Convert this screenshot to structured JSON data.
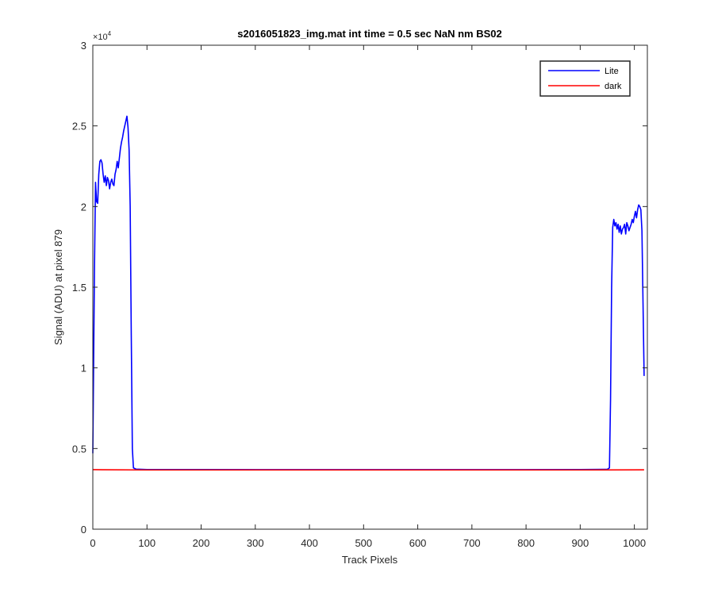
{
  "chart_data": {
    "type": "line",
    "title": "s2016051823_img.mat int time = 0.5 sec  NaN nm BS02",
    "xlabel": "Track Pixels",
    "ylabel": "Signal (ADU) at pixel 879",
    "xlim": [
      0,
      1024
    ],
    "ylim": [
      0,
      30000
    ],
    "x_ticks": [
      0,
      100,
      200,
      300,
      400,
      500,
      600,
      700,
      800,
      900,
      1000
    ],
    "y_ticks": [
      0,
      5000,
      10000,
      15000,
      20000,
      25000,
      30000
    ],
    "y_tick_labels": [
      "0",
      "0.5",
      "1",
      "1.5",
      "2",
      "2.5",
      "3"
    ],
    "y_exponent_label": "×10",
    "y_exponent_power": "4",
    "grid": false,
    "legend_position": "top-right",
    "series": [
      {
        "name": "Lite",
        "color": "#0000ff",
        "points": [
          [
            0,
            4700
          ],
          [
            3,
            16000
          ],
          [
            5,
            21500
          ],
          [
            7,
            20300
          ],
          [
            9,
            20200
          ],
          [
            11,
            22000
          ],
          [
            13,
            22800
          ],
          [
            15,
            22900
          ],
          [
            17,
            22700
          ],
          [
            19,
            22000
          ],
          [
            21,
            21500
          ],
          [
            23,
            21900
          ],
          [
            25,
            21300
          ],
          [
            27,
            21800
          ],
          [
            29,
            21600
          ],
          [
            31,
            21100
          ],
          [
            33,
            21500
          ],
          [
            35,
            21700
          ],
          [
            37,
            21400
          ],
          [
            39,
            21300
          ],
          [
            41,
            22000
          ],
          [
            43,
            22300
          ],
          [
            45,
            22800
          ],
          [
            47,
            22400
          ],
          [
            49,
            23000
          ],
          [
            51,
            23600
          ],
          [
            53,
            24000
          ],
          [
            55,
            24300
          ],
          [
            57,
            24700
          ],
          [
            59,
            25000
          ],
          [
            61,
            25300
          ],
          [
            63,
            25600
          ],
          [
            65,
            24900
          ],
          [
            67,
            23500
          ],
          [
            69,
            20000
          ],
          [
            71,
            12000
          ],
          [
            73,
            5000
          ],
          [
            75,
            3800
          ],
          [
            80,
            3720
          ],
          [
            100,
            3700
          ],
          [
            200,
            3700
          ],
          [
            300,
            3690
          ],
          [
            400,
            3690
          ],
          [
            500,
            3690
          ],
          [
            600,
            3690
          ],
          [
            700,
            3690
          ],
          [
            800,
            3690
          ],
          [
            900,
            3700
          ],
          [
            950,
            3710
          ],
          [
            954,
            3800
          ],
          [
            956,
            8000
          ],
          [
            958,
            15000
          ],
          [
            960,
            18700
          ],
          [
            962,
            19200
          ],
          [
            964,
            18800
          ],
          [
            966,
            19000
          ],
          [
            968,
            18600
          ],
          [
            970,
            18900
          ],
          [
            972,
            18400
          ],
          [
            974,
            18800
          ],
          [
            976,
            18300
          ],
          [
            978,
            18600
          ],
          [
            980,
            18700
          ],
          [
            982,
            18900
          ],
          [
            984,
            18300
          ],
          [
            986,
            19000
          ],
          [
            988,
            18800
          ],
          [
            990,
            18500
          ],
          [
            992,
            18700
          ],
          [
            994,
            18900
          ],
          [
            996,
            19200
          ],
          [
            998,
            19000
          ],
          [
            1000,
            19400
          ],
          [
            1002,
            19700
          ],
          [
            1004,
            19300
          ],
          [
            1006,
            19800
          ],
          [
            1008,
            20100
          ],
          [
            1010,
            20000
          ],
          [
            1012,
            19800
          ],
          [
            1014,
            18500
          ],
          [
            1016,
            14000
          ],
          [
            1018,
            9500
          ]
        ]
      },
      {
        "name": "dark",
        "color": "#ff0000",
        "points": [
          [
            0,
            3690
          ],
          [
            100,
            3670
          ],
          [
            200,
            3670
          ],
          [
            300,
            3670
          ],
          [
            400,
            3670
          ],
          [
            500,
            3670
          ],
          [
            600,
            3670
          ],
          [
            700,
            3670
          ],
          [
            800,
            3670
          ],
          [
            900,
            3670
          ],
          [
            1018,
            3680
          ]
        ]
      }
    ]
  }
}
